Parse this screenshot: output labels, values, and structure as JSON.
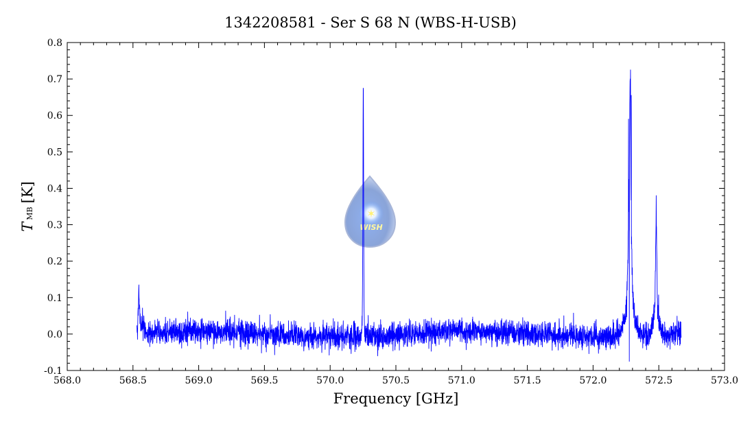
{
  "chart_data": {
    "type": "line",
    "title": "1342208581 - Ser S 68 N (WBS-H-USB)",
    "xlabel": "Frequency [GHz]",
    "ylabel_main": "T",
    "ylabel_sub": "MB",
    "ylabel_unit": "[K]",
    "xlim": [
      568.0,
      573.0
    ],
    "ylim": [
      -0.1,
      0.8
    ],
    "xticks": [
      "568.0",
      "568.5",
      "569.0",
      "569.5",
      "570.0",
      "570.5",
      "571.0",
      "571.5",
      "572.0",
      "572.5",
      "573.0"
    ],
    "yticks": [
      "-0.1",
      "0.0",
      "0.1",
      "0.2",
      "0.3",
      "0.4",
      "0.5",
      "0.6",
      "0.7",
      "0.8"
    ],
    "grid": false,
    "series_color": "#0000ff",
    "data_range": [
      568.53,
      572.67
    ],
    "noise_rms": 0.017,
    "features": [
      {
        "x": 568.545,
        "y": 0.135,
        "kind": "edge-spike"
      },
      {
        "x": 570.252,
        "y": 0.675,
        "kind": "narrow-line"
      },
      {
        "x": 572.27,
        "y": 0.59,
        "kind": "broad-line"
      },
      {
        "x": 572.285,
        "y": 0.725,
        "kind": "peak"
      },
      {
        "x": 572.29,
        "y": 0.655,
        "kind": "peak"
      },
      {
        "x": 572.275,
        "y": -0.075,
        "kind": "dip"
      },
      {
        "x": 572.48,
        "y": 0.38,
        "kind": "narrow-line"
      }
    ],
    "logo": {
      "text": "WISH"
    }
  }
}
